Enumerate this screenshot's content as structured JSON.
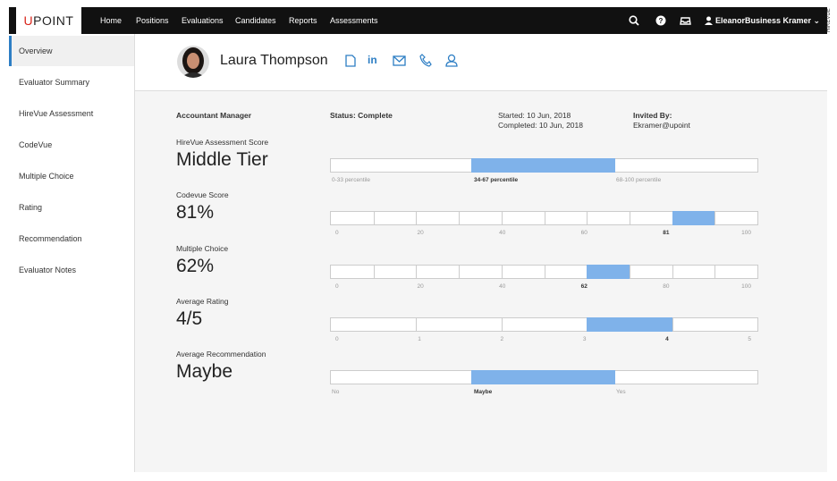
{
  "nav": {
    "logo_mark": "U",
    "logo_text": "POINT",
    "links": [
      "Home",
      "Positions",
      "Evaluations",
      "Candidates",
      "Reports",
      "Assessments"
    ],
    "user": "EleanorBusiness Kramer"
  },
  "watermark": "HIREVUE",
  "sidebar": [
    "Overview",
    "Evaluator Summary",
    "HireVue Assessment",
    "CodeVue",
    "Multiple Choice",
    "Rating",
    "Recommendation",
    "Evaluator Notes"
  ],
  "candidate": {
    "name": "Laura Thompson",
    "linkedin": "in"
  },
  "summary": {
    "role": "Accountant Manager",
    "status": "Status: Complete",
    "started": "Started: 10 Jun, 2018",
    "completed": "Completed: 10 Jun, 2018",
    "invited_label": "Invited By:",
    "invited_by": "Ekramer@upoint"
  },
  "scores": [
    {
      "label": "HireVue Assessment Score",
      "value": "Middle Tier",
      "scale": [
        "0-33 percentile",
        "34-67 percentile",
        "68-100 percentile"
      ]
    },
    {
      "label": "Codevue Score",
      "value": "81%",
      "scale": [
        "0",
        "20",
        "40",
        "60",
        "81",
        "100"
      ]
    },
    {
      "label": "Multiple Choice",
      "value": "62%",
      "scale": [
        "0",
        "20",
        "40",
        "62",
        "80",
        "100"
      ]
    },
    {
      "label": "Average Rating",
      "value": "4/5",
      "scale": [
        "0",
        "1",
        "2",
        "3",
        "4",
        "5"
      ]
    },
    {
      "label": "Average Recommendation",
      "value": "Maybe",
      "scale": [
        "No",
        "Maybe",
        "Yes"
      ]
    }
  ]
}
